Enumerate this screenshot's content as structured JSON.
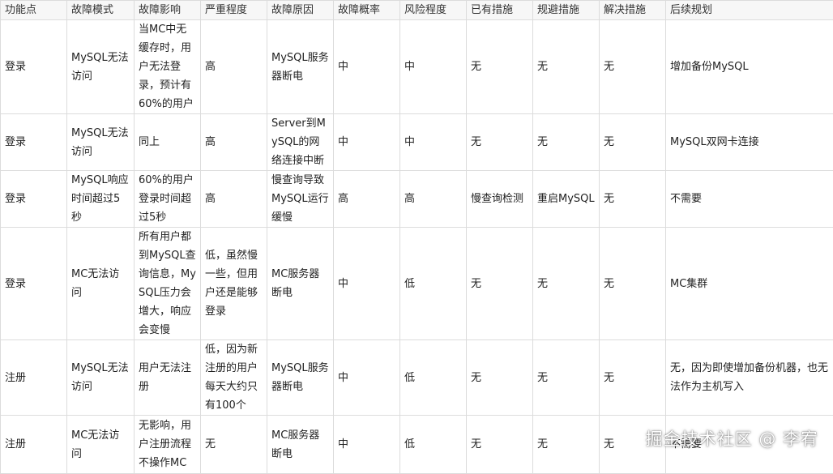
{
  "table": {
    "headers": [
      "功能点",
      "故障模式",
      "故障影响",
      "严重程度",
      "故障原因",
      "故障概率",
      "风险程度",
      "已有措施",
      "规避措施",
      "解决措施",
      "后续规划"
    ],
    "rows": [
      [
        "登录",
        "MySQL无法访问",
        "当MC中无缓存时，用户无法登录，预计有60%的用户",
        "高",
        "MySQL服务器断电",
        "中",
        "中",
        "无",
        "无",
        "无",
        "增加备份MySQL"
      ],
      [
        "登录",
        "MySQL无法访问",
        "同上",
        "高",
        "Server到MySQL的网络连接中断",
        "中",
        "中",
        "无",
        "无",
        "无",
        "MySQL双网卡连接"
      ],
      [
        "登录",
        "MySQL响应时间超过5秒",
        "60%的用户登录时间超过5秒",
        "高",
        "慢查询导致MySQL运行缓慢",
        "高",
        "高",
        "慢查询检测",
        "重启MySQL",
        "无",
        "不需要"
      ],
      [
        "登录",
        "MC无法访问",
        "所有用户都到MySQL查询信息，MySQL压力会增大，响应会变慢",
        "低，虽然慢一些，但用户还是能够登录",
        "MC服务器断电",
        "中",
        "低",
        "无",
        "无",
        "无",
        "MC集群"
      ],
      [
        "注册",
        "MySQL无法访问",
        "用户无法注册",
        "低，因为新注册的用户每天大约只有100个",
        "MySQL服务器断电",
        "中",
        "低",
        "无",
        "无",
        "无",
        "无，因为即使增加备份机器，也无法作为主机写入"
      ],
      [
        "注册",
        "MC无法访问",
        "无影响，用户注册流程不操作MC",
        "无",
        "MC服务器断电",
        "中",
        "低",
        "无",
        "无",
        "无",
        "不需要"
      ]
    ]
  },
  "watermark": "掘金技术社区 @ 李宥"
}
